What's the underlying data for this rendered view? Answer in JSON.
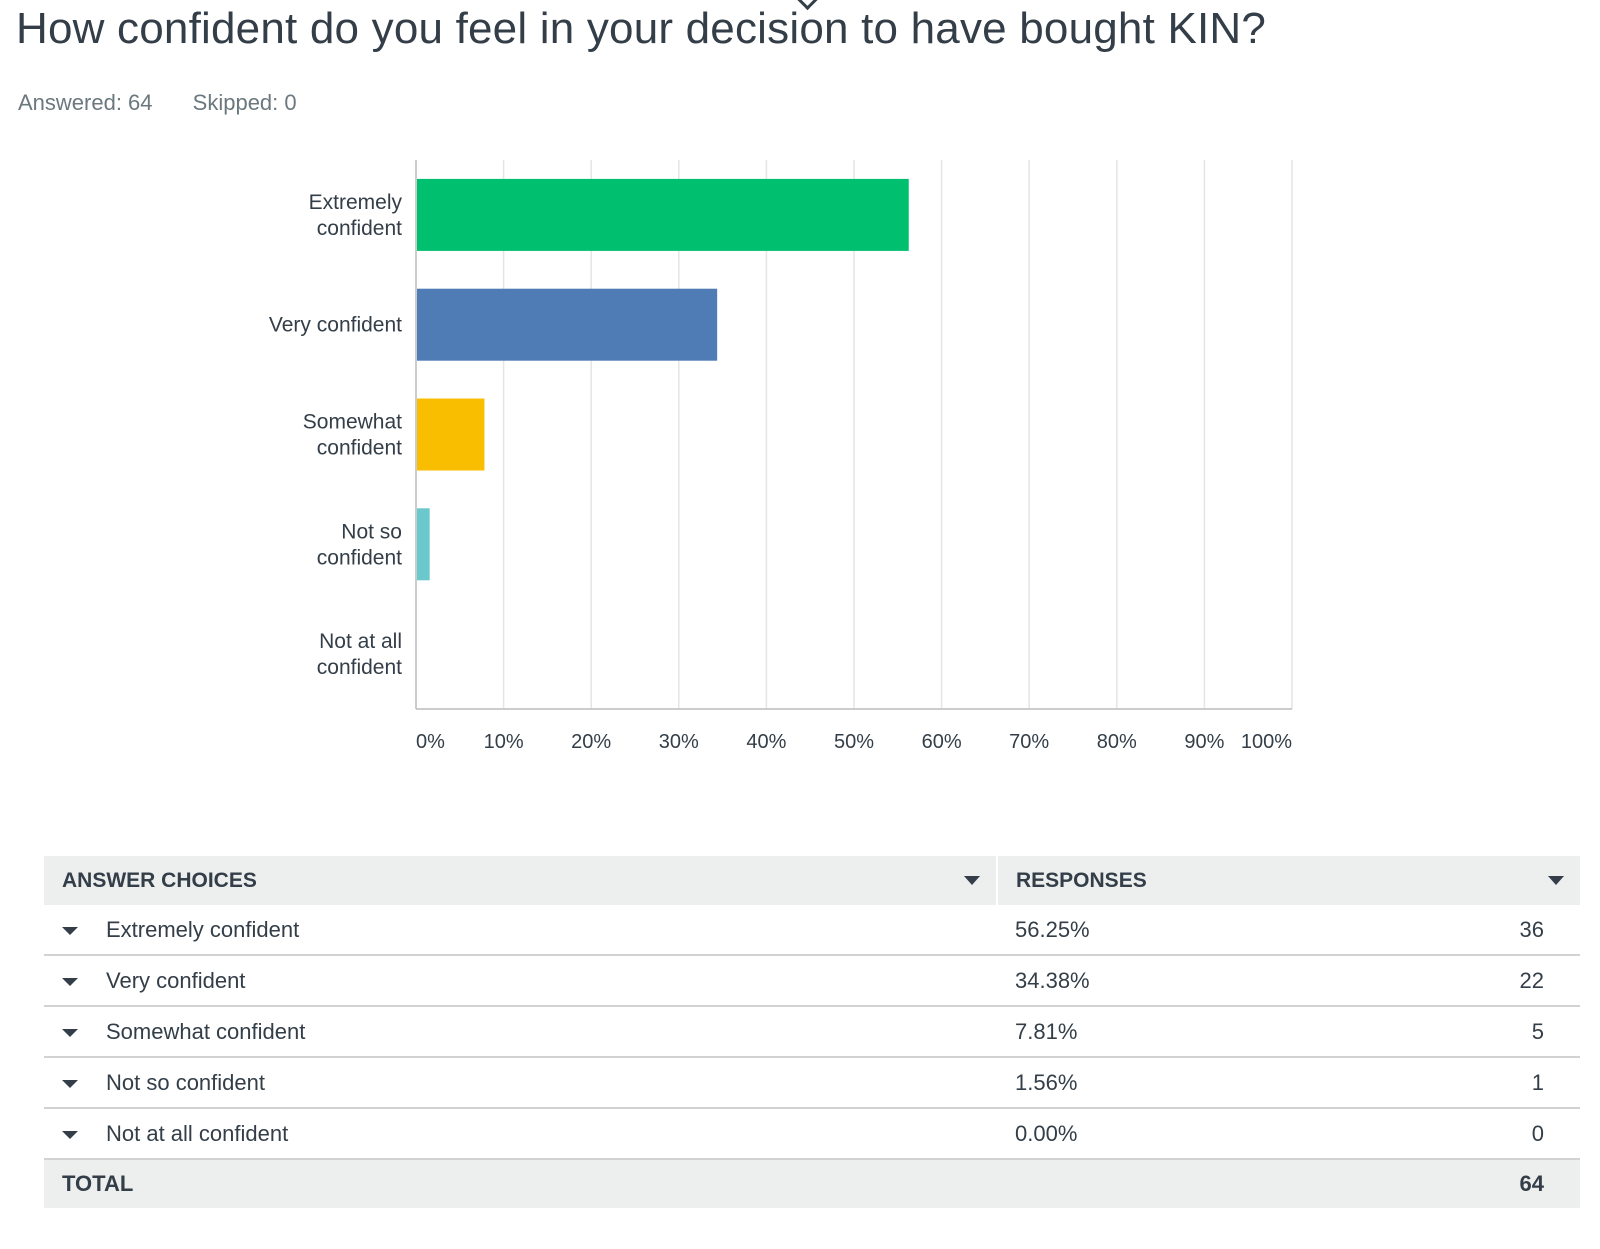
{
  "question": {
    "title": "How confident do you feel in your decision to have bought KIN?",
    "answered": "Answered: 64",
    "skipped": "Skipped: 0"
  },
  "chart_data": {
    "type": "bar",
    "orientation": "horizontal",
    "categories": [
      [
        "Extremely",
        "confident"
      ],
      [
        "Very confident"
      ],
      [
        "Somewhat",
        "confident"
      ],
      [
        "Not so",
        "confident"
      ],
      [
        "Not at all",
        "confident"
      ]
    ],
    "values": [
      56.25,
      34.38,
      7.81,
      1.56,
      0.0
    ],
    "colors": [
      "#00bf6f",
      "#507cb6",
      "#f9be00",
      "#6bc8cd",
      "#ff8b4f"
    ],
    "xlim": [
      0,
      100
    ],
    "xticks": [
      "0%",
      "10%",
      "20%",
      "30%",
      "40%",
      "50%",
      "60%",
      "70%",
      "80%",
      "90%",
      "100%"
    ],
    "grid": true
  },
  "table": {
    "headers": {
      "choices": "ANSWER CHOICES",
      "responses": "RESPONSES"
    },
    "rows": [
      {
        "choice": "Extremely confident",
        "percent": "56.25%",
        "count": "36"
      },
      {
        "choice": "Very confident",
        "percent": "34.38%",
        "count": "22"
      },
      {
        "choice": "Somewhat confident",
        "percent": "7.81%",
        "count": "5"
      },
      {
        "choice": "Not so confident",
        "percent": "1.56%",
        "count": "1"
      },
      {
        "choice": "Not at all confident",
        "percent": "0.00%",
        "count": "0"
      }
    ],
    "total": {
      "label": "TOTAL",
      "count": "64"
    }
  }
}
